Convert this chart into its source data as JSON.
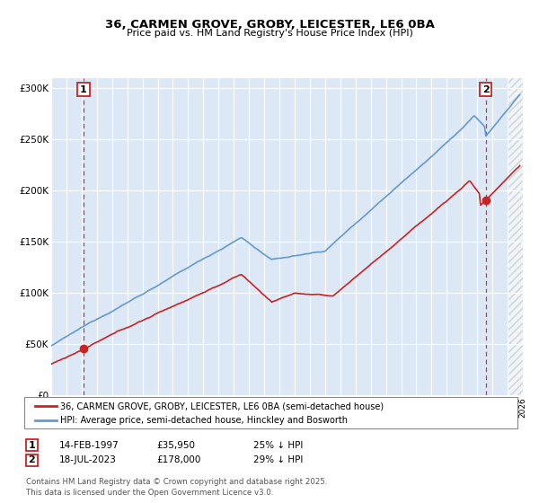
{
  "title1": "36, CARMEN GROVE, GROBY, LEICESTER, LE6 0BA",
  "title2": "Price paid vs. HM Land Registry's House Price Index (HPI)",
  "hpi_color": "#6699cc",
  "price_color": "#cc2222",
  "dashed_color": "#dd3333",
  "legend1": "36, CARMEN GROVE, GROBY, LEICESTER, LE6 0BA (semi-detached house)",
  "legend2": "HPI: Average price, semi-detached house, Hinckley and Bosworth",
  "annotation1_label": "1",
  "annotation1_date": "14-FEB-1997",
  "annotation1_price": "£35,950",
  "annotation1_hpi": "25% ↓ HPI",
  "annotation2_label": "2",
  "annotation2_date": "18-JUL-2023",
  "annotation2_price": "£178,000",
  "annotation2_hpi": "29% ↓ HPI",
  "footer": "Contains HM Land Registry data © Crown copyright and database right 2025.\nThis data is licensed under the Open Government Licence v3.0.",
  "ylim_max": 310000,
  "xmin": 1995,
  "xmax": 2026,
  "sale1_x": 1997.12,
  "sale2_x": 2023.55,
  "sale1_price": 35950,
  "sale2_price": 178000,
  "plot_bg_color": "#dce8f5"
}
